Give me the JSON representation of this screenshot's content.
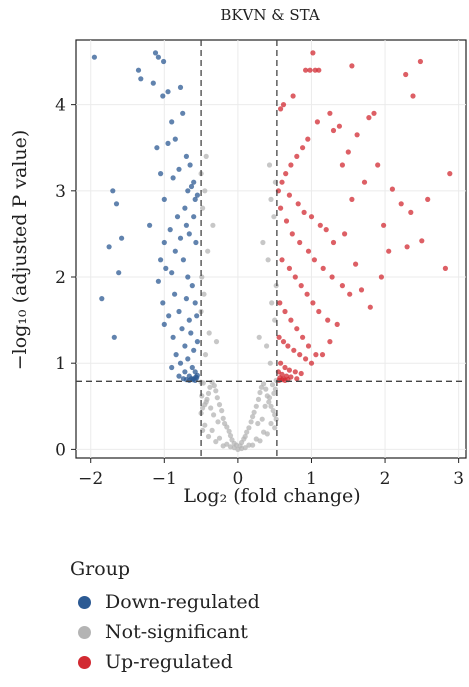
{
  "chart_data": {
    "type": "scatter",
    "title": "BKVN & STA",
    "xlabel": "Log₂ (fold change)",
    "ylabel": "−log₁₀ (adjusted P value)",
    "xlim": [
      -2.2,
      3.1
    ],
    "ylim": [
      -0.1,
      4.75
    ],
    "xticks": [
      -2,
      -1,
      0,
      1,
      2,
      3
    ],
    "xtick_labels": [
      "−2",
      "−1",
      "0",
      "1",
      "2",
      "3"
    ],
    "yticks": [
      0,
      1,
      2,
      3,
      4
    ],
    "ytick_labels": [
      "0",
      "1",
      "2",
      "3",
      "4"
    ],
    "grid": true,
    "thresholds": {
      "log2fc": [
        -0.5,
        0.53
      ],
      "neg_log10_p": 0.79
    },
    "legend": {
      "title": "Group",
      "placement": "bottom",
      "entries": [
        {
          "label": "Down-regulated",
          "color": "#2c5a93"
        },
        {
          "label": "Not-significant",
          "color": "#b4b4b4"
        },
        {
          "label": "Up-regulated",
          "color": "#d22a32"
        }
      ]
    },
    "series": [
      {
        "name": "Down-regulated",
        "color": "#2c5a93",
        "x": [
          -1.95,
          -1.12,
          -1.08,
          -1.01,
          -1.35,
          -1.32,
          -1.15,
          -0.95,
          -1.02,
          -0.78,
          -1.7,
          -1.65,
          -1.58,
          -1.75,
          -1.62,
          -1.85,
          -1.68,
          -1.1,
          -1.05,
          -1.0,
          -1.2,
          -0.9,
          -0.85,
          -0.7,
          -0.65,
          -0.6,
          -0.75,
          -0.95,
          -0.88,
          -0.68,
          -0.58,
          -0.72,
          -0.82,
          -0.92,
          -1.0,
          -1.05,
          -0.8,
          -0.63,
          -0.55,
          -0.7,
          -0.85,
          -0.98,
          -1.08,
          -0.66,
          -0.6,
          -0.78,
          -0.9,
          -1.02,
          -0.74,
          -0.57,
          -0.68,
          -0.86,
          -0.94,
          -0.62,
          -0.7,
          -0.8,
          -1.0,
          -0.58,
          -0.66,
          -0.76,
          -0.88,
          -0.64,
          -0.56,
          -0.72,
          -0.84,
          -0.6,
          -0.68,
          -0.78,
          -0.9,
          -0.55,
          -0.62,
          -0.72,
          -0.8,
          -0.58,
          -0.66,
          -0.74,
          -0.57,
          -0.63,
          -0.7,
          -0.56,
          -0.61,
          -0.66,
          -0.55,
          -0.6,
          -0.58
        ],
        "y": [
          4.55,
          4.6,
          4.55,
          4.5,
          4.4,
          4.3,
          4.25,
          4.15,
          4.1,
          4.2,
          3.0,
          2.85,
          2.45,
          2.35,
          2.05,
          1.75,
          1.3,
          3.5,
          3.2,
          2.9,
          2.6,
          3.8,
          3.6,
          3.4,
          3.3,
          3.1,
          3.9,
          3.55,
          3.15,
          3.0,
          2.9,
          2.8,
          2.7,
          2.55,
          2.4,
          2.2,
          3.25,
          3.05,
          2.95,
          2.6,
          2.3,
          2.1,
          1.95,
          2.5,
          2.7,
          2.45,
          2.05,
          1.7,
          2.2,
          2.4,
          2.0,
          1.8,
          1.55,
          1.9,
          1.75,
          1.6,
          1.45,
          1.7,
          1.5,
          1.4,
          1.3,
          1.35,
          1.55,
          1.2,
          1.1,
          1.15,
          1.05,
          1.0,
          0.95,
          1.25,
          0.95,
          0.9,
          0.85,
          0.9,
          0.85,
          0.82,
          0.84,
          0.82,
          0.81,
          0.83,
          0.81,
          0.8,
          0.86,
          0.82,
          0.8
        ]
      },
      {
        "name": "Not-significant",
        "color": "#b4b4b4",
        "x": [
          0.0,
          -0.02,
          0.03,
          0.05,
          -0.05,
          0.08,
          -0.08,
          0.1,
          -0.1,
          0.12,
          -0.12,
          0.15,
          -0.15,
          0.18,
          -0.18,
          0.2,
          -0.2,
          0.22,
          -0.22,
          0.25,
          -0.25,
          0.28,
          -0.28,
          0.3,
          -0.3,
          0.32,
          -0.32,
          0.35,
          -0.35,
          0.38,
          -0.38,
          0.4,
          -0.4,
          0.42,
          -0.42,
          0.45,
          -0.45,
          0.48,
          -0.48,
          0.5,
          -0.5,
          0.52,
          0.15,
          -0.15,
          0.25,
          -0.25,
          0.35,
          -0.35,
          0.45,
          -0.45,
          0.5,
          -0.48,
          0.4,
          -0.4,
          0.3,
          -0.3,
          0.2,
          -0.2,
          0.1,
          -0.1,
          0.05,
          -0.05,
          0.33,
          -0.33,
          0.43,
          -0.43,
          0.49,
          -0.49,
          0.51,
          0.27,
          -0.27,
          0.37,
          -0.37,
          0.47,
          -0.47,
          0.52,
          -0.5,
          0.44,
          -0.44,
          0.39,
          -0.39,
          0.29,
          -0.29,
          0.5,
          -0.5,
          0.46,
          -0.46,
          0.52,
          -0.49,
          0.41,
          -0.41,
          0.34,
          -0.34,
          0.49,
          -0.48,
          0.45,
          -0.45,
          0.51,
          -0.5,
          0.43,
          -0.43
        ],
        "y": [
          0.0,
          0.05,
          0.04,
          0.08,
          0.07,
          0.12,
          0.11,
          0.15,
          0.16,
          0.2,
          0.21,
          0.25,
          0.26,
          0.32,
          0.3,
          0.38,
          0.36,
          0.43,
          0.45,
          0.5,
          0.52,
          0.58,
          0.6,
          0.66,
          0.68,
          0.72,
          0.74,
          0.76,
          0.78,
          0.7,
          0.72,
          0.62,
          0.65,
          0.55,
          0.58,
          0.5,
          0.52,
          0.45,
          0.48,
          0.4,
          0.42,
          0.35,
          0.05,
          0.06,
          0.12,
          0.13,
          0.2,
          0.22,
          0.3,
          0.28,
          0.25,
          0.22,
          0.18,
          0.15,
          0.1,
          0.09,
          0.05,
          0.04,
          0.02,
          0.03,
          0.01,
          0.02,
          0.35,
          0.4,
          0.6,
          0.55,
          0.65,
          0.62,
          0.7,
          0.3,
          0.32,
          0.5,
          0.48,
          0.75,
          0.77,
          0.8,
          0.78,
          1.0,
          1.1,
          1.2,
          1.35,
          1.3,
          1.25,
          1.5,
          1.6,
          1.7,
          1.8,
          1.9,
          2.0,
          2.2,
          2.3,
          2.4,
          2.6,
          2.7,
          2.8,
          2.9,
          3.0,
          3.1,
          3.2,
          3.3,
          3.4
        ]
      },
      {
        "name": "Up-regulated",
        "color": "#d22a32",
        "x": [
          1.02,
          0.98,
          0.92,
          0.75,
          0.62,
          0.58,
          1.05,
          1.1,
          1.25,
          1.38,
          1.55,
          1.62,
          1.78,
          1.85,
          2.28,
          2.38,
          2.48,
          2.88,
          2.1,
          2.22,
          2.35,
          2.58,
          2.82,
          2.3,
          2.5,
          1.5,
          1.72,
          1.9,
          1.98,
          2.05,
          1.45,
          1.6,
          1.68,
          1.8,
          1.95,
          1.3,
          1.42,
          1.55,
          1.35,
          1.25,
          1.15,
          1.08,
          0.95,
          0.88,
          0.8,
          0.72,
          0.65,
          0.6,
          0.55,
          0.7,
          0.82,
          0.9,
          1.0,
          1.12,
          1.2,
          1.3,
          0.58,
          0.66,
          0.74,
          0.84,
          0.96,
          1.04,
          1.16,
          1.28,
          1.42,
          1.52,
          0.6,
          0.7,
          0.78,
          0.86,
          0.94,
          1.02,
          1.1,
          1.22,
          0.57,
          0.64,
          0.72,
          0.8,
          0.88,
          0.96,
          1.06,
          0.56,
          0.62,
          0.68,
          0.76,
          0.84,
          0.92,
          1.0,
          0.58,
          0.64,
          0.7,
          0.78,
          0.86,
          0.55,
          0.6,
          0.66,
          0.72,
          0.8,
          0.57,
          0.62,
          0.68,
          0.56,
          0.6,
          0.64
        ],
        "y": [
          4.6,
          4.4,
          4.4,
          4.1,
          4.0,
          3.95,
          4.4,
          4.4,
          3.9,
          3.75,
          4.45,
          3.65,
          3.85,
          3.9,
          4.35,
          4.1,
          4.5,
          3.2,
          3.02,
          2.85,
          2.75,
          2.9,
          2.1,
          2.35,
          2.42,
          3.45,
          3.1,
          3.3,
          2.6,
          2.3,
          2.5,
          2.15,
          1.85,
          1.65,
          2.0,
          3.7,
          3.3,
          2.9,
          1.45,
          1.25,
          1.1,
          3.8,
          3.6,
          3.5,
          3.4,
          3.3,
          3.2,
          3.1,
          3.0,
          2.95,
          2.85,
          2.75,
          2.7,
          2.6,
          2.55,
          2.4,
          2.8,
          2.65,
          2.5,
          2.4,
          2.3,
          2.2,
          2.1,
          2.0,
          1.9,
          1.8,
          2.2,
          2.1,
          2.0,
          1.9,
          1.8,
          1.7,
          1.6,
          1.5,
          1.7,
          1.6,
          1.5,
          1.4,
          1.3,
          1.2,
          1.1,
          1.3,
          1.25,
          1.2,
          1.15,
          1.1,
          1.05,
          1.0,
          1.0,
          0.95,
          0.92,
          0.9,
          0.88,
          0.9,
          0.87,
          0.85,
          0.84,
          0.82,
          0.83,
          0.82,
          0.81,
          0.8,
          0.81,
          0.8
        ]
      }
    ]
  }
}
